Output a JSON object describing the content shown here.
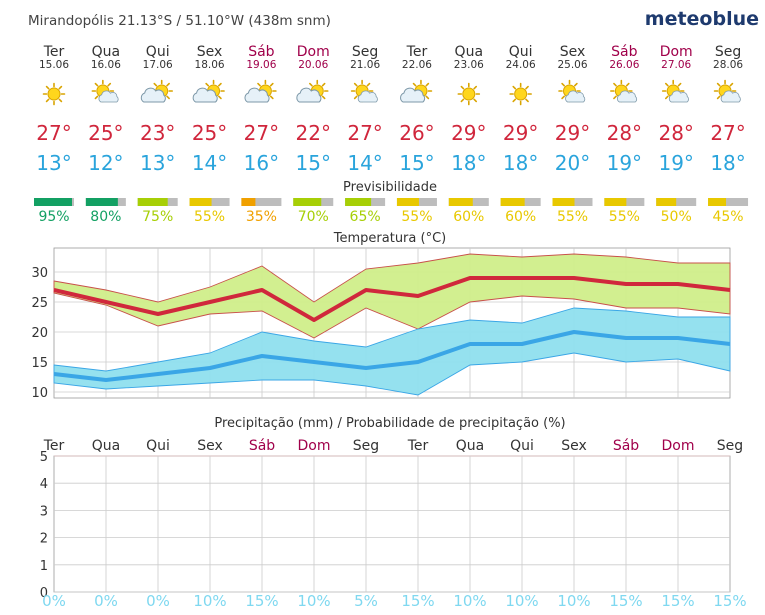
{
  "header": {
    "location": "Mirandopólis  21.13°S / 51.10°W (438m snm)",
    "brand": "meteoblue"
  },
  "colors": {
    "weekend": "#a0004a",
    "weekday": "#333333",
    "max_text": "#d0263c",
    "min_text": "#2aa4dc",
    "max_line": "#d0283c",
    "max_band": "#d0ee8a",
    "min_line": "#3aa6e6",
    "min_band": "#8fdfee",
    "grid": "#cccccc",
    "precip_prob_text": "#7fd8f0"
  },
  "days": [
    {
      "day": "Ter",
      "date": "15.06",
      "icon": "sun-icon",
      "max": "27°",
      "min": "13°",
      "pred": "95%",
      "pred_color": "#13a063",
      "weekend": false
    },
    {
      "day": "Qua",
      "date": "16.06",
      "icon": "sun-cloud-icon",
      "max": "25°",
      "min": "12°",
      "pred": "80%",
      "pred_color": "#13a063",
      "weekend": false
    },
    {
      "day": "Qui",
      "date": "17.06",
      "icon": "cloud-sun-icon",
      "max": "23°",
      "min": "13°",
      "pred": "75%",
      "pred_color": "#a7cf06",
      "weekend": false
    },
    {
      "day": "Sex",
      "date": "18.06",
      "icon": "cloud-sun-icon",
      "max": "25°",
      "min": "14°",
      "pred": "55%",
      "pred_color": "#e8c800",
      "weekend": false
    },
    {
      "day": "Sáb",
      "date": "19.06",
      "icon": "cloud-sun-icon",
      "max": "27°",
      "min": "16°",
      "pred": "35%",
      "pred_color": "#f0a000",
      "weekend": true
    },
    {
      "day": "Dom",
      "date": "20.06",
      "icon": "cloud-sun-icon",
      "max": "22°",
      "min": "15°",
      "pred": "70%",
      "pred_color": "#a7cf06",
      "weekend": true
    },
    {
      "day": "Seg",
      "date": "21.06",
      "icon": "sun-cloud-icon",
      "max": "27°",
      "min": "14°",
      "pred": "65%",
      "pred_color": "#a7cf06",
      "weekend": false
    },
    {
      "day": "Ter",
      "date": "22.06",
      "icon": "cloud-sun-icon",
      "max": "26°",
      "min": "15°",
      "pred": "55%",
      "pred_color": "#e8c800",
      "weekend": false
    },
    {
      "day": "Qua",
      "date": "23.06",
      "icon": "sun-icon",
      "max": "29°",
      "min": "18°",
      "pred": "60%",
      "pred_color": "#e8c800",
      "weekend": false
    },
    {
      "day": "Qui",
      "date": "24.06",
      "icon": "sun-icon",
      "max": "29°",
      "min": "18°",
      "pred": "60%",
      "pred_color": "#e8c800",
      "weekend": false
    },
    {
      "day": "Sex",
      "date": "25.06",
      "icon": "sun-cloud-icon",
      "max": "29°",
      "min": "20°",
      "pred": "55%",
      "pred_color": "#e8c800",
      "weekend": false
    },
    {
      "day": "Sáb",
      "date": "26.06",
      "icon": "sun-cloud-icon",
      "max": "28°",
      "min": "19°",
      "pred": "55%",
      "pred_color": "#e8c800",
      "weekend": true
    },
    {
      "day": "Dom",
      "date": "27.06",
      "icon": "sun-cloud-icon",
      "max": "28°",
      "min": "19°",
      "pred": "50%",
      "pred_color": "#e8c800",
      "weekend": true
    },
    {
      "day": "Seg",
      "date": "28.06",
      "icon": "sun-cloud-icon",
      "max": "27°",
      "min": "18°",
      "pred": "45%",
      "pred_color": "#e8c800",
      "weekend": false
    }
  ],
  "predictability_title": "Previsibilidade",
  "chart_data": [
    {
      "type": "line",
      "title": "Temperatura (°C)",
      "ylim": [
        9,
        34
      ],
      "yticks": [
        10,
        15,
        20,
        25,
        30
      ],
      "grid": true,
      "x": [
        0,
        1,
        2,
        3,
        4,
        5,
        6,
        7,
        8,
        9,
        10,
        11,
        12,
        13
      ],
      "series": [
        {
          "values": [
            27,
            25,
            23,
            25,
            27,
            22,
            27,
            26,
            29,
            29,
            29,
            28,
            28,
            27
          ]
        },
        {
          "values": [
            28.5,
            27,
            25,
            27.5,
            31,
            25,
            30.5,
            31.5,
            33,
            32.5,
            33,
            32.5,
            31.5,
            31.5
          ]
        },
        {
          "values": [
            26.5,
            24.5,
            21,
            23,
            23.5,
            19,
            24,
            20.5,
            25,
            26,
            25.5,
            24,
            24,
            23
          ]
        },
        {
          "values": [
            13,
            12,
            13,
            14,
            16,
            15,
            14,
            15,
            18,
            18,
            20,
            19,
            19,
            18
          ]
        },
        {
          "values": [
            14.5,
            13.5,
            15,
            16.5,
            20,
            18.5,
            17.5,
            20.5,
            22,
            21.5,
            24,
            23.5,
            22.5,
            22.5
          ]
        },
        {
          "values": [
            11.5,
            10.5,
            11,
            11.5,
            12,
            12,
            11,
            9.5,
            14.5,
            15,
            16.5,
            15,
            15.5,
            13.5
          ]
        }
      ]
    },
    {
      "type": "bar",
      "title": "Precipitação (mm) / Probabilidade de precipitação (%)",
      "ylim": [
        0,
        5
      ],
      "yticks": [
        0,
        1,
        2,
        3,
        4,
        5
      ],
      "categories": [
        "Ter",
        "Qua",
        "Qui",
        "Sex",
        "Sáb",
        "Dom",
        "Seg",
        "Ter",
        "Qua",
        "Qui",
        "Sex",
        "Sáb",
        "Dom",
        "Seg"
      ],
      "values": [
        0,
        0,
        0,
        0,
        0,
        0,
        0,
        0,
        0,
        0,
        0,
        0,
        0,
        0
      ],
      "probabilities": [
        "0%",
        "0%",
        "0%",
        "10%",
        "15%",
        "10%",
        "5%",
        "15%",
        "10%",
        "10%",
        "10%",
        "15%",
        "15%",
        "15%"
      ]
    }
  ]
}
